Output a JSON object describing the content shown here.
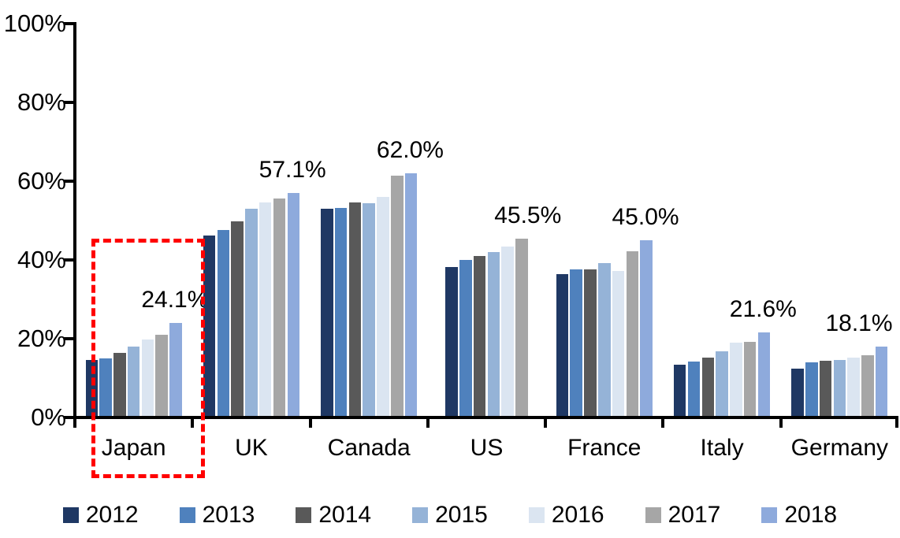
{
  "chart_data": {
    "type": "bar",
    "title": "",
    "xlabel": "",
    "ylabel": "",
    "categories": [
      "Japan",
      "UK",
      "Canada",
      "US",
      "France",
      "Italy",
      "Germany"
    ],
    "series": [
      {
        "name": "2012",
        "color": "#1F3864",
        "values": [
          14.6,
          46.2,
          53.0,
          38.3,
          36.5,
          13.4,
          12.5
        ]
      },
      {
        "name": "2013",
        "color": "#4F81BD",
        "values": [
          15.0,
          47.6,
          53.3,
          40.0,
          37.7,
          14.2,
          14.0
        ]
      },
      {
        "name": "2014",
        "color": "#595959",
        "values": [
          16.4,
          49.8,
          54.7,
          41.0,
          37.7,
          15.3,
          14.4
        ]
      },
      {
        "name": "2015",
        "color": "#95B3D7",
        "values": [
          18.0,
          53.0,
          54.5,
          42.1,
          39.2,
          16.8,
          14.7
        ]
      },
      {
        "name": "2016",
        "color": "#DBE5F1",
        "values": [
          19.9,
          54.6,
          56.0,
          43.5,
          37.3,
          19.0,
          15.3
        ]
      },
      {
        "name": "2017",
        "color": "#A6A6A6",
        "values": [
          21.1,
          55.6,
          61.4,
          45.5,
          42.3,
          19.2,
          15.8
        ]
      },
      {
        "name": "2018",
        "color": "#8EAADC",
        "values": [
          24.1,
          57.1,
          62.0,
          null,
          45.0,
          21.6,
          18.1
        ]
      }
    ],
    "value_labels": [
      "24.1%",
      "57.1%",
      "62.0%",
      "45.5%",
      "45.0%",
      "21.6%",
      "18.1%"
    ],
    "y_ticks": [
      "0%",
      "20%",
      "40%",
      "60%",
      "80%",
      "100%"
    ],
    "ylim": [
      0,
      100
    ],
    "grid": false,
    "legend_position": "bottom",
    "legend_items": [
      "2012",
      "2013",
      "2014",
      "2015",
      "2016",
      "2017",
      "2018"
    ],
    "annotation": {
      "shape": "dashed-rectangle",
      "color": "#FF0000",
      "highlighted_category": "Japan",
      "highlighted_value": "24.1%"
    },
    "colors": {
      "axis": "#000000",
      "text": "#000000",
      "background": "#FFFFFF",
      "highlight": "#FF0000"
    }
  }
}
